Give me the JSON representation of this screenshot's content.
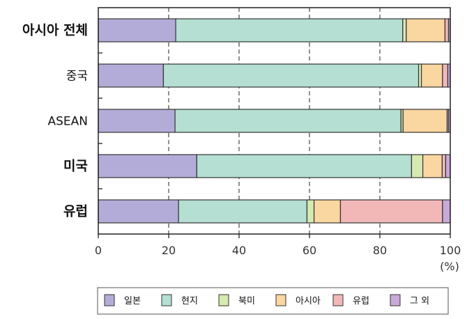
{
  "chart_data": {
    "type": "bar",
    "orientation": "horizontal",
    "stacked": true,
    "categories": [
      "아시아 전체",
      "중국",
      "ASEAN",
      "미국",
      "유럽"
    ],
    "category_bold": [
      true,
      false,
      false,
      true,
      true
    ],
    "series": [
      {
        "name": "일본",
        "color": "#b4acd8",
        "values": [
          22,
          18.5,
          21.8,
          28,
          22.8
        ]
      },
      {
        "name": "현지",
        "color": "#b4dfd2",
        "values": [
          64.5,
          72.5,
          64.2,
          61,
          36.5
        ]
      },
      {
        "name": "북미",
        "color": "#d5e9b0",
        "values": [
          1,
          0.8,
          0.6,
          3.2,
          2
        ]
      },
      {
        "name": "아시아",
        "color": "#fad6a0",
        "values": [
          11,
          6,
          12.5,
          5.5,
          7.5
        ]
      },
      {
        "name": "유럽",
        "color": "#f2b8b8",
        "values": [
          1,
          1.5,
          0.4,
          1,
          29
        ]
      },
      {
        "name": "그 외",
        "color": "#c9a9d8",
        "values": [
          0.5,
          0.7,
          0.5,
          1.3,
          2.2
        ]
      }
    ],
    "xlim": [
      0,
      100
    ],
    "xticks": [
      0,
      20,
      40,
      60,
      80,
      100
    ],
    "tick_labels": [
      "0",
      "20",
      "40",
      "60",
      "80",
      "100"
    ],
    "x_unit": "(%)",
    "grid": "vertical dashed",
    "legend_position": "bottom"
  }
}
